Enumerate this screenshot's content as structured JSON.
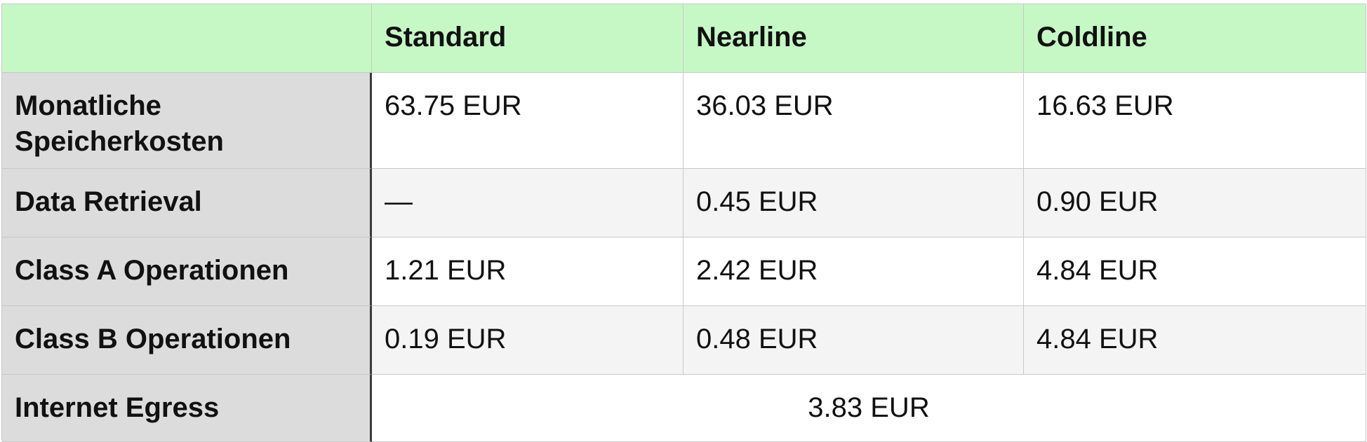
{
  "table": {
    "header": [
      "",
      "Standard",
      "Nearline",
      "Coldline"
    ],
    "rows": [
      {
        "label": "Monatliche Speicherkosten",
        "values": [
          "63.75 EUR",
          "36.03 EUR",
          "16.63 EUR"
        ]
      },
      {
        "label": "Data Retrieval",
        "values": [
          "—",
          "0.45 EUR",
          "0.90 EUR"
        ]
      },
      {
        "label": "Class A Operationen",
        "values": [
          "1.21 EUR",
          "2.42 EUR",
          "4.84 EUR"
        ]
      },
      {
        "label": "Class B Operationen",
        "values": [
          "0.19 EUR",
          "0.48 EUR",
          "4.84 EUR"
        ]
      }
    ],
    "egress": {
      "label": "Internet Egress",
      "value": "3.83 EUR"
    }
  },
  "colors": {
    "header_bg": "#c6f8c6",
    "label_bg": "#dcdcdc",
    "row_alt_bg": "#f4f4f4",
    "grid_line": "#c8c8c8"
  }
}
